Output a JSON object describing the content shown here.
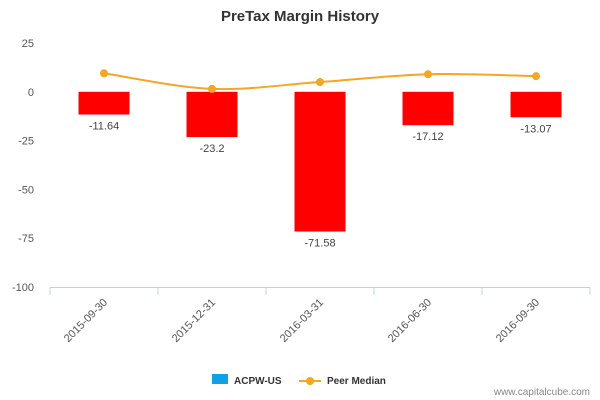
{
  "chart_data": {
    "type": "bar",
    "title": "PreTax Margin History",
    "categories": [
      "2015-09-30",
      "2015-12-31",
      "2016-03-31",
      "2016-06-30",
      "2016-09-30"
    ],
    "series": [
      {
        "name": "ACPW-US",
        "type": "bar",
        "values": [
          -11.64,
          -23.2,
          -71.58,
          -17.12,
          -13.07
        ],
        "data_labels": [
          "-11.64",
          "-23.2",
          "-71.58",
          "-17.12",
          "-13.07"
        ]
      },
      {
        "name": "Peer Median",
        "type": "line",
        "values": [
          9.5,
          1.5,
          5.0,
          9.0,
          8.0
        ]
      }
    ],
    "ylim": [
      -100,
      25
    ],
    "yticks": [
      25,
      0,
      -25,
      -50,
      -75,
      -100
    ],
    "ytick_labels": [
      "25",
      "0",
      "-25",
      "-50",
      "-75",
      "-100"
    ],
    "xlabel": "",
    "ylabel": "",
    "legend_position": "bottom"
  },
  "colors": {
    "bar": "#ff0000",
    "legend_bar": "#0fa0e8",
    "line": "#f5a623",
    "axis": "#c0d0e0"
  },
  "credit": "www.capitalcube.com"
}
